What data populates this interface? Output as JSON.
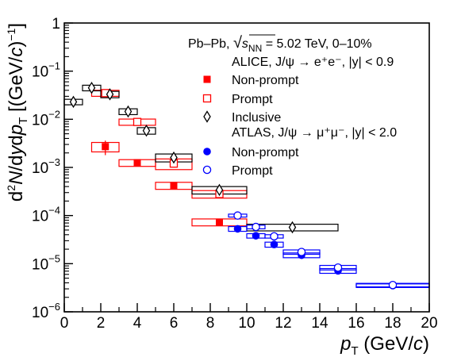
{
  "chart_data": {
    "type": "scatter",
    "title": "",
    "xlabel": "pT (GeV/c)",
    "ylabel": "d²N/dydpT [(GeV/c)⁻¹]",
    "xlim": [
      0,
      20
    ],
    "ylim": [
      1e-06,
      1
    ],
    "yscale": "log",
    "grid": false,
    "legend_position": "top-right",
    "x_ticks": [
      0,
      2,
      4,
      6,
      8,
      10,
      12,
      14,
      16,
      18,
      20
    ],
    "y_ticks": [
      {
        "value": 1e-06,
        "mant": "10",
        "exp": "−6"
      },
      {
        "value": 1e-05,
        "mant": "10",
        "exp": "−5"
      },
      {
        "value": 0.0001,
        "mant": "10",
        "exp": "−4"
      },
      {
        "value": 0.001,
        "mant": "10",
        "exp": "−3"
      },
      {
        "value": 0.01,
        "mant": "10",
        "exp": "−2"
      },
      {
        "value": 0.1,
        "mant": "10",
        "exp": "−1"
      },
      {
        "value": 1,
        "mant": "1",
        "exp": ""
      }
    ],
    "header": {
      "system": "Pb–Pb, ",
      "energy_rest": " = 5.02 TeV, 0–10%",
      "alice": "ALICE, J/ψ → e⁺e⁻, |y| < 0.9",
      "atlas": "ATLAS, J/ψ → μ⁺μ⁻, |y| < 2.0"
    },
    "series": [
      {
        "name": "Non-prompt",
        "experiment": "ALICE",
        "marker": "filled-square",
        "color": "#ff0000",
        "points": [
          {
            "x": 2.25,
            "xlow": 1.5,
            "xhigh": 3.0,
            "y": 0.0027,
            "ylow": 0.0018,
            "yhigh": 0.0036,
            "sys": 0.0006
          },
          {
            "x": 4.0,
            "xlow": 3.0,
            "xhigh": 5.0,
            "y": 0.00125,
            "ylow": 0.00112,
            "yhigh": 0.00138,
            "sys": 0.0002
          },
          {
            "x": 6.0,
            "xlow": 5.0,
            "xhigh": 7.0,
            "y": 0.00042,
            "ylow": 0.00038,
            "yhigh": 0.00046,
            "sys": 7e-05
          },
          {
            "x": 8.5,
            "xlow": 7.0,
            "xhigh": 10.0,
            "y": 7.3e-05,
            "ylow": 6.5e-05,
            "yhigh": 8.1e-05,
            "sys": 1.2e-05
          }
        ]
      },
      {
        "name": "Prompt",
        "experiment": "ALICE",
        "marker": "open-square",
        "color": "#ff0000",
        "points": [
          {
            "x": 2.25,
            "xlow": 1.5,
            "xhigh": 3.0,
            "y": 0.035,
            "ylow": 0.031,
            "yhigh": 0.039,
            "sys": 0.005
          },
          {
            "x": 4.0,
            "xlow": 3.0,
            "xhigh": 5.0,
            "y": 0.0088,
            "ylow": 0.008,
            "yhigh": 0.0096,
            "sys": 0.0013
          },
          {
            "x": 6.0,
            "xlow": 5.0,
            "xhigh": 7.0,
            "y": 0.0012,
            "ylow": 0.0011,
            "yhigh": 0.0013,
            "sys": 0.0003
          },
          {
            "x": 8.5,
            "xlow": 7.0,
            "xhigh": 10.0,
            "y": 0.00028,
            "ylow": 0.00025,
            "yhigh": 0.00031,
            "sys": 5e-05
          }
        ]
      },
      {
        "name": "Inclusive",
        "experiment": "ALICE",
        "marker": "open-diamond",
        "color": "#000000",
        "points": [
          {
            "x": 0.5,
            "xlow": 0.0,
            "xhigh": 1.0,
            "y": 0.023,
            "ylow": 0.021,
            "yhigh": 0.025,
            "sys": 0.003
          },
          {
            "x": 1.5,
            "xlow": 1.0,
            "xhigh": 2.0,
            "y": 0.045,
            "ylow": 0.042,
            "yhigh": 0.048,
            "sys": 0.006
          },
          {
            "x": 2.5,
            "xlow": 2.0,
            "xhigh": 3.0,
            "y": 0.033,
            "ylow": 0.031,
            "yhigh": 0.035,
            "sys": 0.005
          },
          {
            "x": 3.5,
            "xlow": 3.0,
            "xhigh": 4.0,
            "y": 0.0145,
            "ylow": 0.0135,
            "yhigh": 0.0155,
            "sys": 0.002
          },
          {
            "x": 4.5,
            "xlow": 4.0,
            "xhigh": 5.0,
            "y": 0.0058,
            "ylow": 0.0054,
            "yhigh": 0.0062,
            "sys": 0.0009
          },
          {
            "x": 6.0,
            "xlow": 5.0,
            "xhigh": 7.0,
            "y": 0.0016,
            "ylow": 0.0015,
            "yhigh": 0.0017,
            "sys": 0.0003
          },
          {
            "x": 8.5,
            "xlow": 7.0,
            "xhigh": 10.0,
            "y": 0.00034,
            "ylow": 0.00031,
            "yhigh": 0.00037,
            "sys": 6e-05
          },
          {
            "x": 12.5,
            "xlow": 10.0,
            "xhigh": 15.0,
            "y": 5.7e-05,
            "ylow": 5.2e-05,
            "yhigh": 6.2e-05,
            "sys": 9e-06
          }
        ]
      },
      {
        "name": "Non-prompt",
        "experiment": "ATLAS",
        "marker": "filled-circle",
        "color": "#0000ff",
        "points": [
          {
            "x": 9.5,
            "xlow": 9.0,
            "xhigh": 10.0,
            "y": 5.3e-05,
            "ylow": 4.9e-05,
            "yhigh": 5.7e-05,
            "sys": 6e-06
          },
          {
            "x": 10.5,
            "xlow": 10.0,
            "xhigh": 11.0,
            "y": 3.8e-05,
            "ylow": 3.5e-05,
            "yhigh": 4.1e-05,
            "sys": 4e-06
          },
          {
            "x": 11.5,
            "xlow": 11.0,
            "xhigh": 12.0,
            "y": 2.5e-05,
            "ylow": 2.3e-05,
            "yhigh": 2.7e-05,
            "sys": 3e-06
          },
          {
            "x": 13.0,
            "xlow": 12.0,
            "xhigh": 14.0,
            "y": 1.5e-05,
            "ylow": 1.4e-05,
            "yhigh": 1.6e-05,
            "sys": 1.7e-06
          },
          {
            "x": 15.0,
            "xlow": 14.0,
            "xhigh": 16.0,
            "y": 7.1e-06,
            "ylow": 6.6e-06,
            "yhigh": 7.6e-06,
            "sys": 8e-07
          },
          {
            "x": 18.0,
            "xlow": 16.0,
            "xhigh": 20.0,
            "y": 3.5e-06,
            "ylow": 3.3e-06,
            "yhigh": 3.7e-06,
            "sys": 3e-07
          }
        ]
      },
      {
        "name": "Prompt",
        "experiment": "ATLAS",
        "marker": "open-circle",
        "color": "#0000ff",
        "points": [
          {
            "x": 9.5,
            "xlow": 9.0,
            "xhigh": 10.0,
            "y": 0.0001,
            "ylow": 9.4e-05,
            "yhigh": 0.000106,
            "sys": 7e-06
          },
          {
            "x": 10.5,
            "xlow": 10.0,
            "xhigh": 11.0,
            "y": 5.8e-05,
            "ylow": 5.4e-05,
            "yhigh": 6.2e-05,
            "sys": 5e-06
          },
          {
            "x": 11.5,
            "xlow": 11.0,
            "xhigh": 12.0,
            "y": 3.7e-05,
            "ylow": 3.4e-05,
            "yhigh": 4e-05,
            "sys": 3e-06
          },
          {
            "x": 13.0,
            "xlow": 12.0,
            "xhigh": 14.0,
            "y": 1.75e-05,
            "ylow": 1.63e-05,
            "yhigh": 1.87e-05,
            "sys": 1.8e-06
          },
          {
            "x": 15.0,
            "xlow": 14.0,
            "xhigh": 16.0,
            "y": 8.3e-06,
            "ylow": 7.7e-06,
            "yhigh": 8.9e-06,
            "sys": 9e-07
          },
          {
            "x": 18.0,
            "xlow": 16.0,
            "xhigh": 20.0,
            "y": 3.6e-06,
            "ylow": 3.4e-06,
            "yhigh": 3.8e-06,
            "sys": 3e-07
          }
        ]
      }
    ]
  }
}
